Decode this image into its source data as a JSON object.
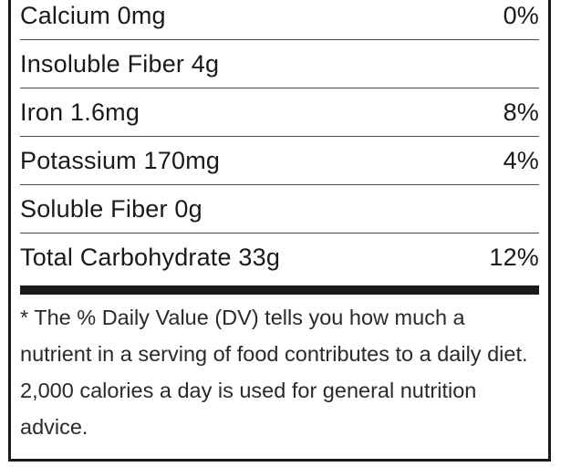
{
  "nutrients": [
    {
      "label": "Calcium 0mg",
      "dv": "0%"
    },
    {
      "label": "Insoluble Fiber 4g",
      "dv": ""
    },
    {
      "label": "Iron 1.6mg",
      "dv": "8%"
    },
    {
      "label": "Potassium 170mg",
      "dv": "4%"
    },
    {
      "label": "Soluble Fiber 0g",
      "dv": ""
    },
    {
      "label": "Total Carbohydrate 33g",
      "dv": "12%"
    }
  ],
  "footnote": "* The % Daily Value (DV) tells you how much a nutrient in a serving of food contributes to a daily diet. 2,000 calories a day is used for general nutrition advice."
}
